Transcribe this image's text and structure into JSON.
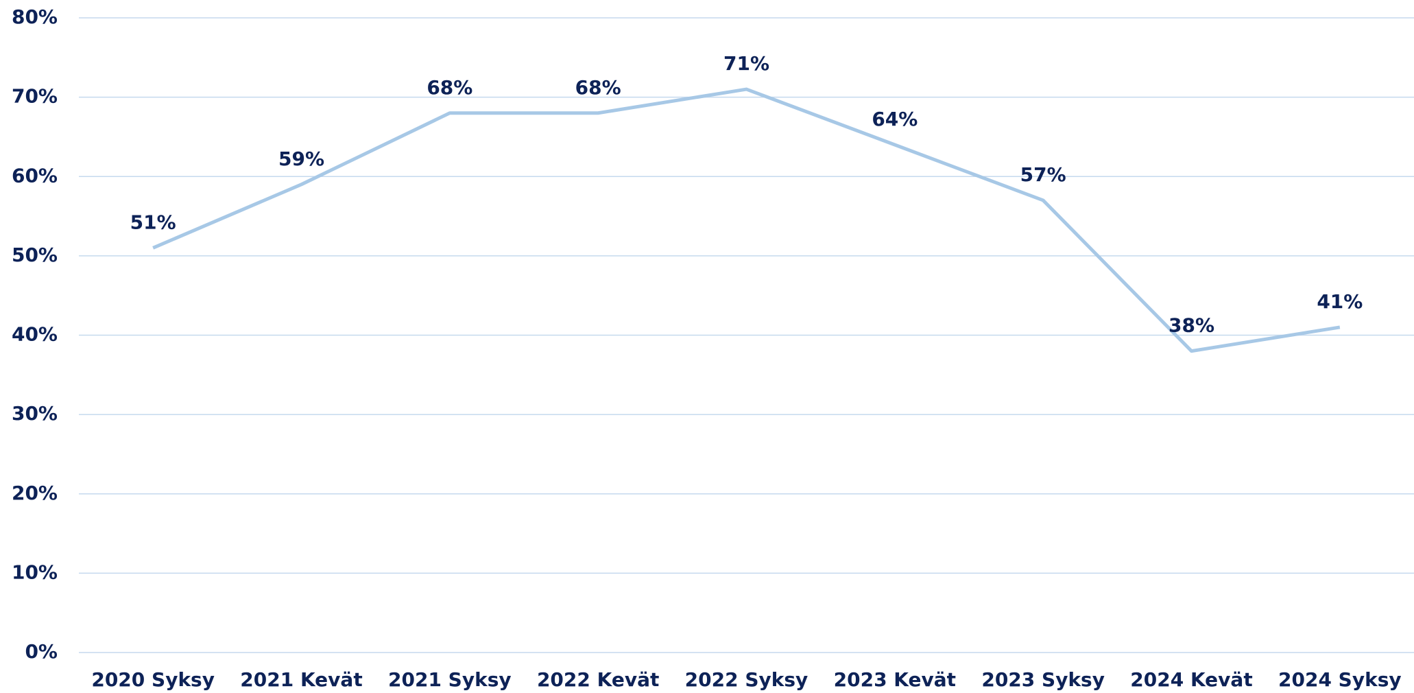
{
  "chart_data": {
    "type": "line",
    "categories": [
      "2020 Syksy",
      "2021 Kevät",
      "2021 Syksy",
      "2022 Kevät",
      "2022 Syksy",
      "2023 Kevät",
      "2023 Syksy",
      "2024 Kevät",
      "2024 Syksy"
    ],
    "series": [
      {
        "color": "#a7c8e6",
        "values": [
          51,
          59,
          68,
          68,
          71,
          64,
          57,
          38,
          41
        ],
        "value_labels": [
          "51%",
          "59%",
          "68%",
          "68%",
          "71%",
          "64%",
          "57%",
          "38%",
          "41%"
        ]
      }
    ],
    "ylim": [
      0,
      80
    ],
    "yticks": [
      {
        "value": 0,
        "label": "0%"
      },
      {
        "value": 10,
        "label": "10%"
      },
      {
        "value": 20,
        "label": "20%"
      },
      {
        "value": 30,
        "label": "30%"
      },
      {
        "value": 40,
        "label": "40%"
      },
      {
        "value": 50,
        "label": "50%"
      },
      {
        "value": 60,
        "label": "60%"
      },
      {
        "value": 70,
        "label": "70%"
      },
      {
        "value": 80,
        "label": "80%"
      }
    ],
    "grid": true
  }
}
